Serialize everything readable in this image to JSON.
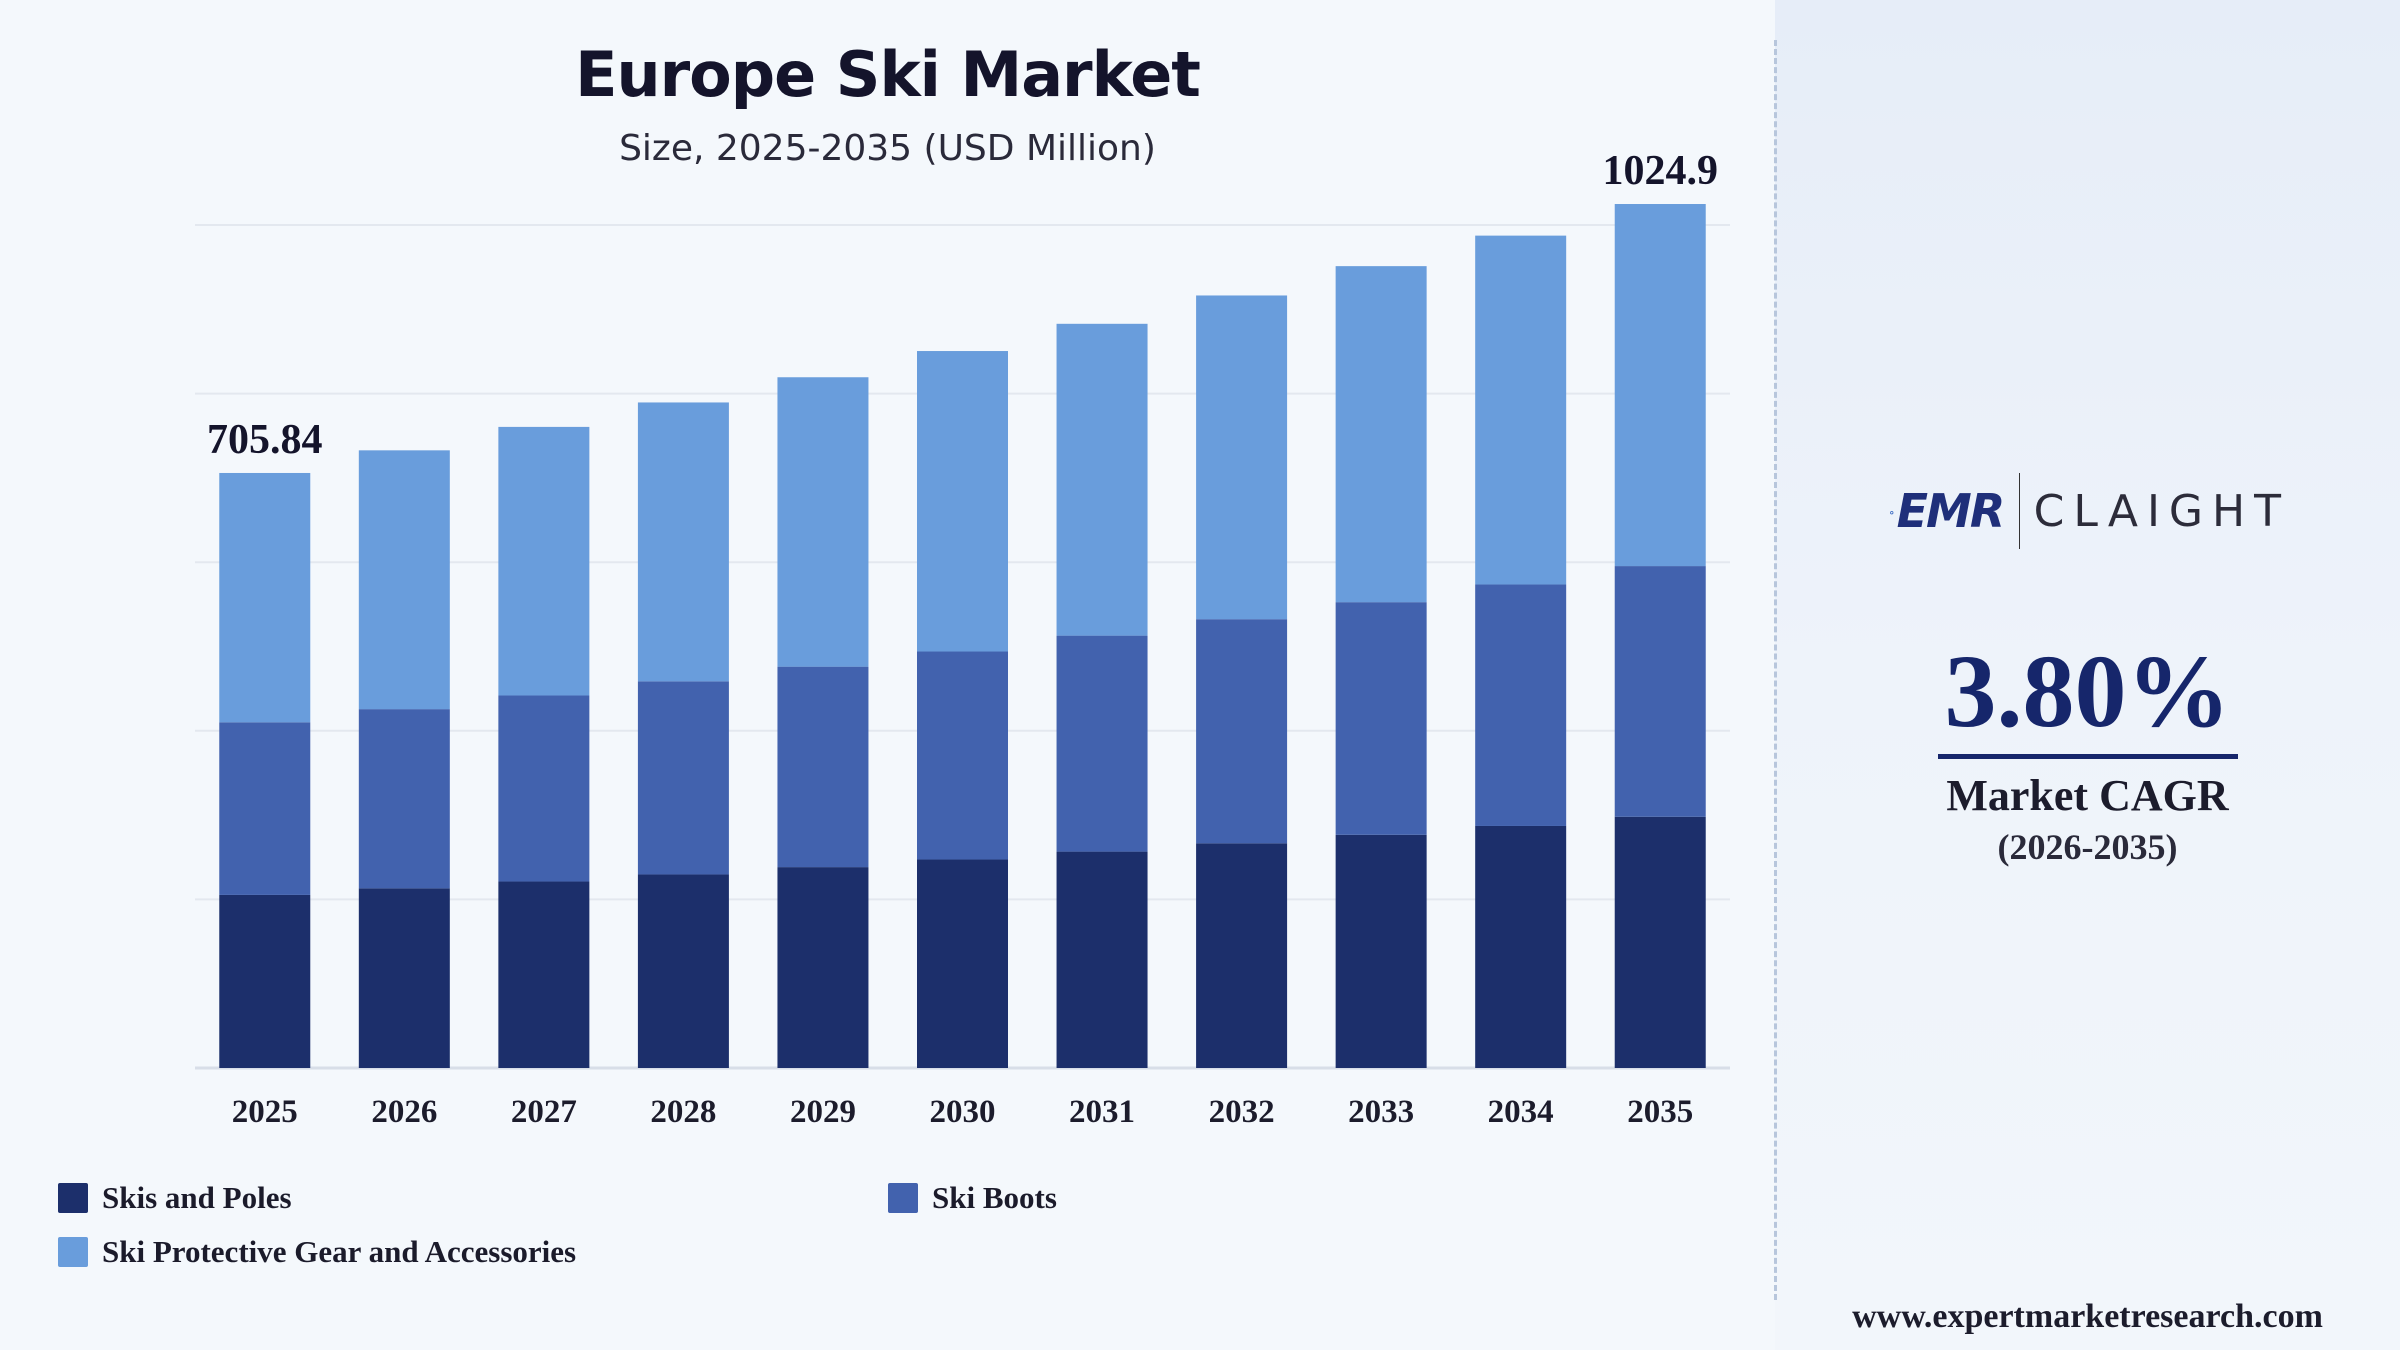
{
  "colors": {
    "skis_and_poles": "#1c2f6b",
    "ski_boots": "#4262ae",
    "protective_gear": "#699ddc",
    "cagr_accent": "#16266b"
  },
  "chart_data": {
    "type": "bar",
    "stacked": true,
    "title": "Europe Ski Market",
    "subtitle": "Size, 2025-2035 (USD Million)",
    "categories": [
      "2025",
      "2026",
      "2027",
      "2028",
      "2029",
      "2030",
      "2031",
      "2032",
      "2033",
      "2034",
      "2035"
    ],
    "series": [
      {
        "name": "Skis and Poles",
        "values": [
          205.3,
          213.1,
          221.2,
          229.6,
          238.3,
          247.3,
          256.7,
          266.5,
          276.6,
          287.1,
          298.0
        ]
      },
      {
        "name": "Ski Boots",
        "values": [
          204.8,
          212.6,
          220.7,
          229.1,
          237.8,
          246.8,
          256.2,
          265.9,
          276.0,
          286.5,
          297.4
        ]
      },
      {
        "name": "Ski Protective Gear and Accessories",
        "values": [
          295.74,
          307.0,
          318.6,
          330.8,
          343.3,
          356.4,
          369.9,
          384.0,
          398.6,
          413.8,
          429.5
        ]
      }
    ],
    "data_labels": [
      {
        "category": "2025",
        "text": "705.84"
      },
      {
        "category": "2035",
        "text": "1024.9"
      }
    ],
    "ylim": [
      0,
      1000
    ],
    "y_ticks": [
      0,
      200,
      400,
      600,
      800,
      1000
    ],
    "y_tick_labels_shown": false,
    "grid": true,
    "legend_position": "bottom"
  },
  "legend": {
    "items": [
      {
        "label": "Skis and Poles"
      },
      {
        "label": "Ski Boots"
      },
      {
        "label": "Ski Protective Gear and Accessories"
      }
    ]
  },
  "side_panel": {
    "logo_emr": "EMR",
    "logo_claight": "CLAIGHT",
    "cagr_value": "3.80%",
    "cagr_label": "Market CAGR",
    "cagr_period": "(2026-2035)",
    "website": "www.expertmarketresearch.com"
  }
}
